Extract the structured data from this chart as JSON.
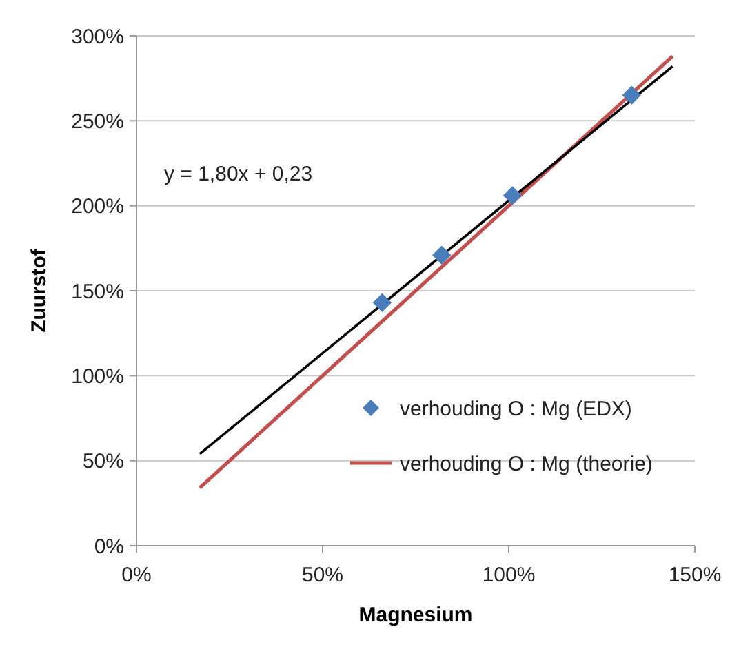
{
  "chart_data": {
    "type": "scatter",
    "xlabel": "Magnesium",
    "ylabel": "Zuurstof",
    "annotations": [
      "y = 1,80x + 0,23"
    ],
    "xlim": [
      0,
      150
    ],
    "xticks": [
      {
        "value": 0,
        "label": "0%"
      },
      {
        "value": 50,
        "label": "50%"
      },
      {
        "value": 100,
        "label": "100%"
      },
      {
        "value": 150,
        "label": "150%"
      }
    ],
    "ylim": [
      0,
      300
    ],
    "yticks": [
      {
        "value": 0,
        "label": "0%"
      },
      {
        "value": 50,
        "label": "50%"
      },
      {
        "value": 100,
        "label": "100%"
      },
      {
        "value": 150,
        "label": "150%"
      },
      {
        "value": 200,
        "label": "200%"
      },
      {
        "value": 250,
        "label": "250%"
      },
      {
        "value": 300,
        "label": "300%"
      }
    ],
    "grid": "y",
    "legend": "bottom right",
    "series": [
      {
        "name": "verhouding O : Mg (EDX)",
        "marker": "diamond",
        "color": "#4a7ebb",
        "x": [
          66,
          82,
          101,
          133
        ],
        "values": [
          143,
          171,
          206,
          265
        ]
      },
      {
        "name": "verhouding O : Mg (theorie)",
        "type": "line",
        "marker": "none",
        "color": "#c0504d",
        "x": [
          17,
          144
        ],
        "values": [
          34,
          288
        ]
      },
      {
        "type": "line",
        "marker": "none",
        "color": "#000000",
        "x": [
          17,
          144
        ],
        "values": [
          54,
          282
        ]
      }
    ]
  }
}
